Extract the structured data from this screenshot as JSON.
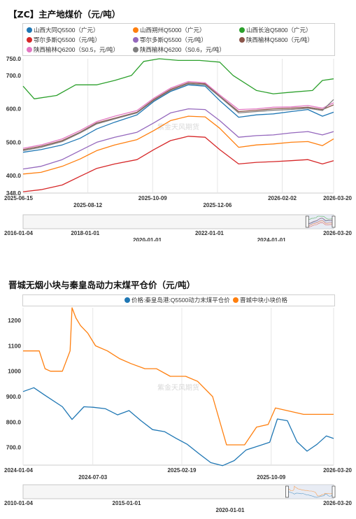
{
  "chart_data": [
    {
      "type": "line",
      "title": "【ZC】主产地煤价（元/吨）",
      "watermark": "紫金天风期货",
      "ylim": [
        348,
        750
      ],
      "yticks": [
        348,
        400,
        500,
        600,
        700,
        750
      ],
      "ytick_labels": [
        "348.0",
        "400.0",
        "500.0",
        "600.0",
        "700.0",
        "750.0"
      ],
      "x_start": "2025-06-15",
      "x_end": "2026-03-20",
      "x_tick_labels": [
        {
          "date": "2025-06-15",
          "label": "2025-06-15"
        },
        {
          "date": "2025-08-12",
          "label": "2025-08-12"
        },
        {
          "date": "2025-10-09",
          "label": "2025-10-09"
        },
        {
          "date": "2025-12-06",
          "label": "2025-12-06"
        },
        {
          "date": "2026-02-02",
          "label": "2026-02-02"
        },
        {
          "date": "2026-03-20",
          "label": "2026-03-20"
        }
      ],
      "navigator_labels": [
        "2016-01-04",
        "2018-01-01",
        "2020-01-01",
        "2022-01-01",
        "2024-01-01",
        "2026-03-20"
      ],
      "series": [
        {
          "name": "山西大同Q5500（广元）",
          "color": "#1f77b4",
          "x": [
            "2025-06-15",
            "2025-07-01",
            "2025-07-20",
            "2025-08-05",
            "2025-08-20",
            "2025-09-05",
            "2025-09-25",
            "2025-10-10",
            "2025-10-25",
            "2025-11-10",
            "2025-11-25",
            "2025-12-08",
            "2025-12-25",
            "2026-01-10",
            "2026-01-25",
            "2026-02-10",
            "2026-02-25",
            "2026-03-10",
            "2026-03-20"
          ],
          "values": [
            470,
            478,
            492,
            512,
            540,
            560,
            582,
            622,
            652,
            672,
            668,
            625,
            575,
            582,
            585,
            592,
            598,
            578,
            590
          ]
        },
        {
          "name": "山西朔州Q5000（广元）",
          "color": "#ff7f0e",
          "x": [
            "2025-06-15",
            "2025-07-01",
            "2025-07-20",
            "2025-08-05",
            "2025-08-20",
            "2025-09-05",
            "2025-09-25",
            "2025-10-10",
            "2025-10-25",
            "2025-11-10",
            "2025-11-25",
            "2025-12-08",
            "2025-12-25",
            "2026-01-10",
            "2026-01-25",
            "2026-02-10",
            "2026-02-25",
            "2026-03-10",
            "2026-03-20"
          ],
          "values": [
            405,
            410,
            428,
            450,
            475,
            492,
            508,
            535,
            565,
            578,
            576,
            542,
            485,
            492,
            495,
            500,
            502,
            490,
            510
          ]
        },
        {
          "name": "山西长治Q5800（广元）",
          "color": "#2ca02c",
          "x": [
            "2025-06-15",
            "2025-06-25",
            "2025-07-15",
            "2025-08-01",
            "2025-08-20",
            "2025-09-05",
            "2025-09-20",
            "2025-10-01",
            "2025-10-15",
            "2025-11-01",
            "2025-11-20",
            "2025-12-08",
            "2025-12-20",
            "2026-01-10",
            "2026-01-25",
            "2026-02-10",
            "2026-03-01",
            "2026-03-10",
            "2026-03-20"
          ],
          "values": [
            668,
            630,
            640,
            672,
            672,
            685,
            700,
            742,
            750,
            745,
            745,
            740,
            700,
            655,
            645,
            650,
            655,
            685,
            690
          ]
        },
        {
          "name": "鄂尔多斯Q5500（元/吨）",
          "color": "#d62728",
          "x": [
            "2025-06-15",
            "2025-07-01",
            "2025-07-20",
            "2025-08-05",
            "2025-08-20",
            "2025-09-05",
            "2025-09-25",
            "2025-10-10",
            "2025-10-25",
            "2025-11-10",
            "2025-11-25",
            "2025-12-08",
            "2025-12-25",
            "2026-01-10",
            "2026-01-25",
            "2026-02-10",
            "2026-02-25",
            "2026-03-10",
            "2026-03-20"
          ],
          "values": [
            352,
            358,
            372,
            398,
            422,
            435,
            448,
            478,
            505,
            518,
            515,
            478,
            435,
            440,
            442,
            445,
            448,
            435,
            445
          ]
        },
        {
          "name": "鄂尔多斯Q5500（元/吨）",
          "color": "#9467bd",
          "x": [
            "2025-06-15",
            "2025-07-01",
            "2025-07-20",
            "2025-08-05",
            "2025-08-20",
            "2025-09-05",
            "2025-09-25",
            "2025-10-10",
            "2025-10-25",
            "2025-11-10",
            "2025-11-25",
            "2025-12-08",
            "2025-12-25",
            "2026-01-10",
            "2026-01-25",
            "2026-02-10",
            "2026-02-25",
            "2026-03-10",
            "2026-03-20"
          ],
          "values": [
            420,
            428,
            448,
            475,
            500,
            515,
            530,
            558,
            588,
            600,
            598,
            565,
            515,
            520,
            522,
            528,
            532,
            522,
            532
          ]
        },
        {
          "name": "陕西榆林Q5800（元/吨）",
          "color": "#8c564b",
          "x": [
            "2025-06-15",
            "2025-07-01",
            "2025-07-20",
            "2025-08-05",
            "2025-08-20",
            "2025-09-05",
            "2025-09-25",
            "2025-10-10",
            "2025-10-25",
            "2025-11-10",
            "2025-11-25",
            "2025-12-08",
            "2025-12-25",
            "2026-01-10",
            "2026-01-25",
            "2026-02-10",
            "2026-02-25",
            "2026-03-10",
            "2026-03-20"
          ],
          "values": [
            478,
            488,
            505,
            530,
            558,
            572,
            590,
            628,
            658,
            678,
            675,
            638,
            592,
            596,
            600,
            602,
            605,
            598,
            612
          ]
        },
        {
          "name": "陕西榆林Q6200（S0.5，元/吨）",
          "color": "#e377c2",
          "x": [
            "2025-06-15",
            "2025-07-01",
            "2025-07-20",
            "2025-08-05",
            "2025-08-20",
            "2025-09-05",
            "2025-09-25",
            "2025-10-10",
            "2025-10-25",
            "2025-11-10",
            "2025-11-25",
            "2025-12-08",
            "2025-12-25",
            "2026-01-10",
            "2026-01-25",
            "2026-02-10",
            "2026-02-25",
            "2026-03-10",
            "2026-03-20"
          ],
          "values": [
            482,
            492,
            510,
            535,
            562,
            578,
            595,
            632,
            662,
            682,
            678,
            642,
            598,
            600,
            605,
            606,
            610,
            602,
            618
          ]
        },
        {
          "name": "陕西榆林Q6200（S0.6，元/吨）",
          "color": "#7f7f7f",
          "x": [
            "2025-06-15",
            "2025-07-01",
            "2025-07-20",
            "2025-08-05",
            "2025-08-20",
            "2025-09-05",
            "2025-09-25",
            "2025-10-10",
            "2025-10-25",
            "2025-11-10",
            "2025-11-25",
            "2025-12-08",
            "2025-12-25",
            "2026-01-10",
            "2026-01-25",
            "2026-02-10",
            "2026-02-25",
            "2026-03-10",
            "2026-03-20"
          ],
          "values": [
            475,
            485,
            502,
            528,
            555,
            570,
            588,
            625,
            655,
            675,
            672,
            636,
            588,
            592,
            596,
            598,
            602,
            595,
            628
          ]
        }
      ]
    },
    {
      "type": "line",
      "title": "晋城无烟小块与秦皇岛动力末煤平仓价（元/吨）",
      "watermark": "紫金天风期货",
      "ylim": [
        630,
        1250
      ],
      "yticks": [
        700,
        800,
        900,
        1000,
        1100,
        1200
      ],
      "ytick_labels": [
        "700.0",
        "800.0",
        "900.0",
        "1000",
        "1100",
        "1200"
      ],
      "x_start": "2024-01-04",
      "x_end": "2026-03-20",
      "x_tick_labels": [
        {
          "date": "2024-01-04",
          "label": "2024-01-04"
        },
        {
          "date": "2024-07-03",
          "label": "2024-07-03"
        },
        {
          "date": "2025-02-19",
          "label": "2025-02-19"
        },
        {
          "date": "2025-10-09",
          "label": "2025-10-09"
        },
        {
          "date": "2026-03-20",
          "label": "2026-03-20"
        }
      ],
      "navigator_labels": [
        "2010-01-04",
        "2015-01-01",
        "2020-01-01",
        "2026-03-20"
      ],
      "series": [
        {
          "name": "价格:秦皇岛港:Q5500动力末煤平仓价",
          "color": "#1f77b4",
          "x": [
            "2024-01-04",
            "2024-02-01",
            "2024-03-01",
            "2024-04-15",
            "2024-05-10",
            "2024-06-10",
            "2024-07-05",
            "2024-08-05",
            "2024-09-05",
            "2024-10-05",
            "2024-11-05",
            "2024-12-05",
            "2025-01-05",
            "2025-02-05",
            "2025-03-05",
            "2025-04-05",
            "2025-05-05",
            "2025-06-05",
            "2025-07-05",
            "2025-08-05",
            "2025-09-05",
            "2025-10-05",
            "2025-10-25",
            "2025-11-20",
            "2025-12-15",
            "2026-01-10",
            "2026-02-05",
            "2026-03-01",
            "2026-03-20"
          ],
          "values": [
            920,
            935,
            905,
            860,
            810,
            860,
            858,
            852,
            828,
            845,
            805,
            770,
            762,
            735,
            712,
            675,
            640,
            628,
            648,
            690,
            705,
            720,
            812,
            805,
            722,
            685,
            712,
            745,
            735
          ]
        },
        {
          "name": "晋城中块小块价格",
          "color": "#ff7f0e",
          "x": [
            "2024-01-04",
            "2024-02-15",
            "2024-03-01",
            "2024-03-15",
            "2024-04-15",
            "2024-05-05",
            "2024-05-10",
            "2024-05-20",
            "2024-06-01",
            "2024-06-20",
            "2024-07-10",
            "2024-08-10",
            "2024-09-10",
            "2024-10-10",
            "2024-11-15",
            "2024-12-15",
            "2025-01-20",
            "2025-03-01",
            "2025-04-01",
            "2025-05-10",
            "2025-06-15",
            "2025-08-01",
            "2025-09-01",
            "2025-10-01",
            "2025-10-20",
            "2026-01-01",
            "2026-03-20"
          ],
          "values": [
            1080,
            1080,
            1010,
            1000,
            1000,
            1080,
            1250,
            1210,
            1180,
            1150,
            1100,
            1080,
            1050,
            1030,
            1010,
            1010,
            980,
            980,
            960,
            900,
            710,
            710,
            780,
            790,
            855,
            830,
            830
          ]
        }
      ]
    }
  ]
}
